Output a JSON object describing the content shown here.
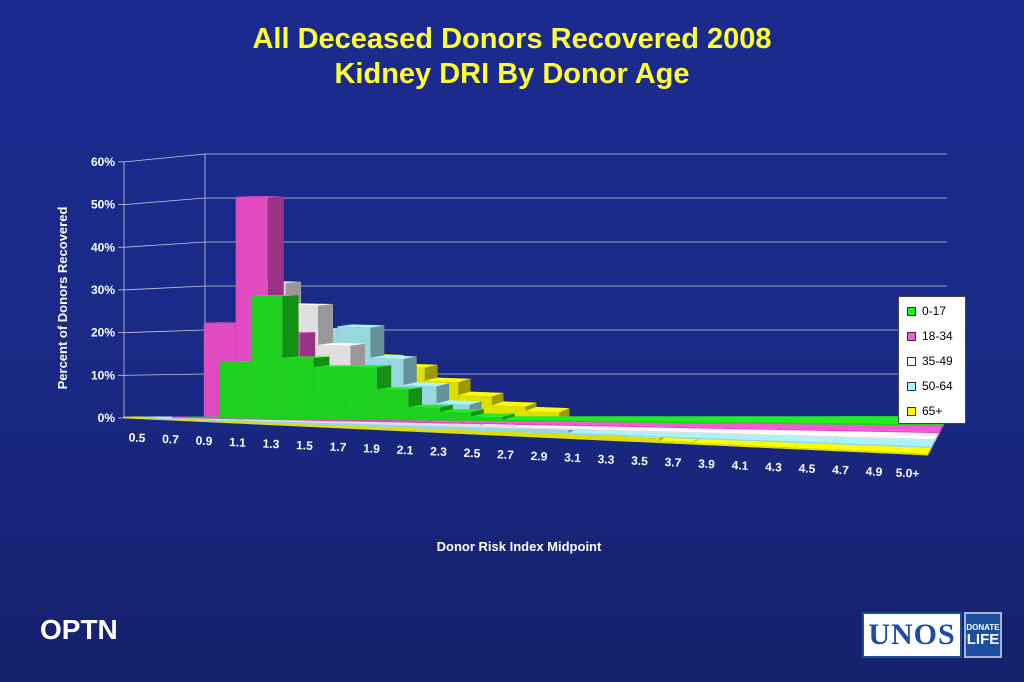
{
  "slide": {
    "title_line1": "All Deceased Donors Recovered 2008",
    "title_line2": "Kidney DRI By Donor Age",
    "footer_label": "OPTN",
    "logo_main": "UNOS",
    "logo_sub_top": "DONATE",
    "logo_sub_bottom": "LIFE"
  },
  "colors": {
    "title": "#ffff33",
    "background": "#1b2a8e",
    "series": [
      "#22ee22",
      "#ff55dd",
      "#ffffff",
      "#aaf4ff",
      "#ffff00"
    ]
  },
  "chart_data": {
    "type": "bar",
    "style": "3d-clustered-depth",
    "ylabel": "Percent of Donors Recovered",
    "xlabel": "Donor Risk Index Midpoint",
    "ylim": [
      0,
      60
    ],
    "y_ticks": [
      "0%",
      "10%",
      "20%",
      "30%",
      "40%",
      "50%",
      "60%"
    ],
    "grid": true,
    "legend_position": "right",
    "categories": [
      "0.5",
      "0.7",
      "0.9",
      "1.1",
      "1.3",
      "1.5",
      "1.7",
      "1.9",
      "2.1",
      "2.3",
      "2.5",
      "2.7",
      "2.9",
      "3.1",
      "3.3",
      "3.5",
      "3.7",
      "3.9",
      "4.1",
      "4.3",
      "4.5",
      "4.7",
      "4.9",
      "5.0+"
    ],
    "series": [
      {
        "name": "0-17",
        "values": [
          0.3,
          13,
          28,
          14,
          12,
          12,
          7,
          3,
          2,
          1,
          0.3,
          0.2,
          0.1,
          0.1,
          0,
          0,
          0,
          0,
          0,
          0,
          0,
          0,
          0,
          0
        ]
      },
      {
        "name": "18-34",
        "values": [
          0,
          22,
          51,
          20,
          5,
          2,
          1,
          0.5,
          0.3,
          0.1,
          0.1,
          0,
          0,
          0,
          0,
          0,
          0,
          0,
          0,
          0,
          0,
          0,
          0,
          0
        ]
      },
      {
        "name": "35-49",
        "values": [
          0,
          0,
          0,
          32,
          27,
          18,
          8,
          4,
          2,
          1,
          0.5,
          0.3,
          0.1,
          0.1,
          0,
          0,
          0,
          0,
          0,
          0,
          0,
          0,
          0,
          0
        ]
      },
      {
        "name": "50-64",
        "values": [
          0,
          0,
          0,
          6,
          15,
          22,
          23,
          16,
          10,
          6,
          3,
          2,
          1,
          0.3,
          0.2,
          0.1,
          0,
          0,
          0,
          0,
          0,
          0,
          0,
          0
        ]
      },
      {
        "name": "65+",
        "values": [
          0,
          0,
          0,
          0,
          4,
          11,
          16,
          17,
          15,
          12,
          9,
          7,
          6,
          3,
          2,
          1,
          0.5,
          0.2,
          0.1,
          0,
          0,
          0,
          0,
          0
        ]
      }
    ]
  }
}
